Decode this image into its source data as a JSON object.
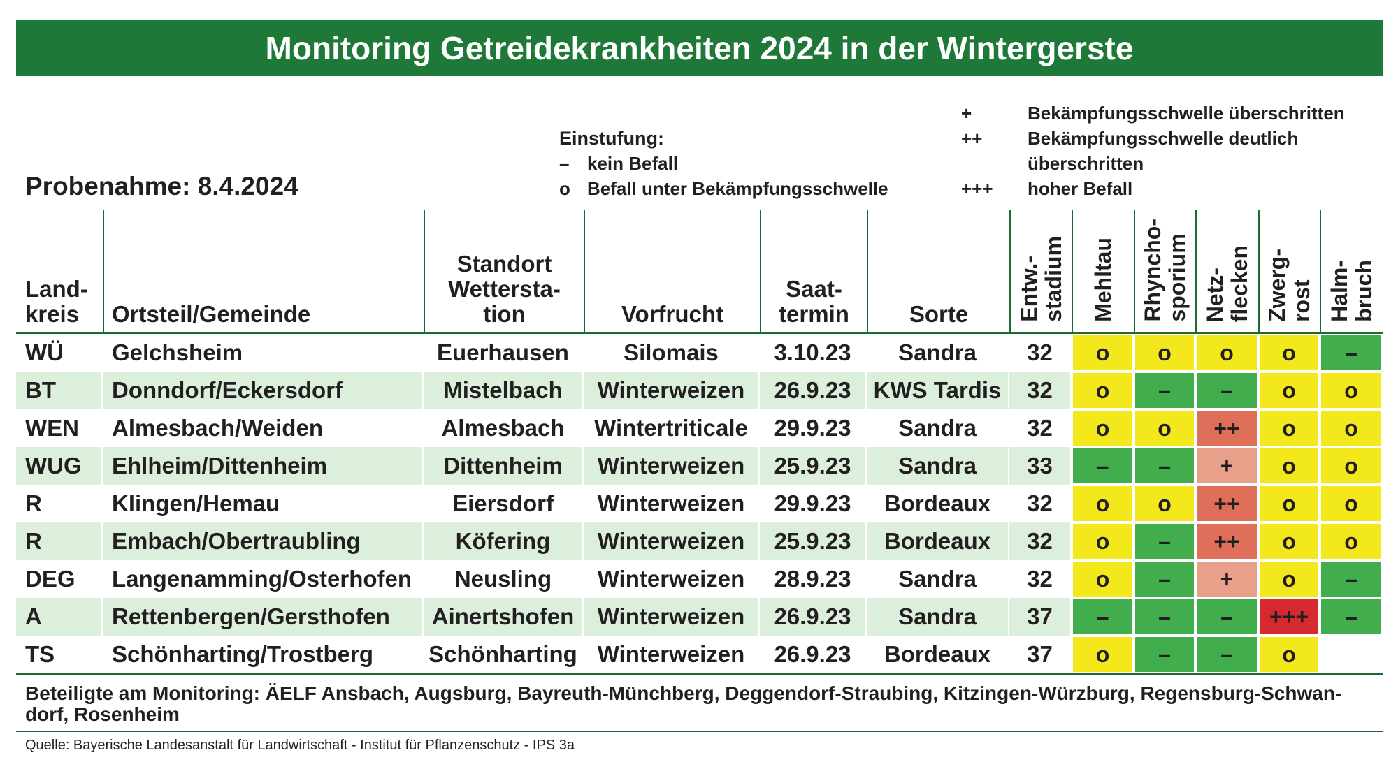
{
  "title": "Monitoring Getreidekrankheiten 2024 in der Wintergerste",
  "sampling_date": "Probenahme: 8.4.2024",
  "legend": {
    "heading": "Einstufung:",
    "left": [
      {
        "symbol": "–",
        "label": "kein Befall"
      },
      {
        "symbol": "o",
        "label": "Befall unter Bekämpfungsschwelle"
      }
    ],
    "right": [
      {
        "symbol": "+",
        "lines": [
          "Bekämpfungsschwelle überschritten"
        ]
      },
      {
        "symbol": "++",
        "lines": [
          "Bekämpfungsschwelle deutlich",
          "überschritten"
        ]
      },
      {
        "symbol": "+++",
        "lines": [
          "hoher Befall"
        ]
      }
    ]
  },
  "table": {
    "columns": [
      {
        "lines": [
          "Land-",
          "kreis"
        ]
      },
      {
        "lines": [
          "Ortsteil/Gemeinde"
        ]
      },
      {
        "lines": [
          "Standort",
          "Wettersta-",
          "tion"
        ]
      },
      {
        "lines": [
          "Vorfrucht"
        ]
      },
      {
        "lines": [
          "Saat-",
          "termin"
        ]
      },
      {
        "lines": [
          "Sorte"
        ]
      },
      {
        "lines": [
          "Entw.-",
          "stadium"
        ]
      },
      {
        "lines": [
          "Mehltau"
        ]
      },
      {
        "lines": [
          "Rhyncho-",
          "sporium"
        ]
      },
      {
        "lines": [
          "Netz-",
          "flecken"
        ]
      },
      {
        "lines": [
          "Zwerg-",
          "rost"
        ]
      },
      {
        "lines": [
          "Halm-",
          "bruch"
        ]
      }
    ],
    "rows": [
      {
        "landkreis": "WÜ",
        "ortsteil": "Gelchsheim",
        "standort": "Euerhausen",
        "vorfrucht": "Silomais",
        "saattermin": "3.10.23",
        "sorte": "Sandra",
        "stadium": "32",
        "ratings": [
          "o",
          "o",
          "o",
          "o",
          "–"
        ]
      },
      {
        "landkreis": "BT",
        "ortsteil": "Donndorf/Eckersdorf",
        "standort": "Mistelbach",
        "vorfrucht": "Winterweizen",
        "saattermin": "26.9.23",
        "sorte": "KWS Tardis",
        "stadium": "32",
        "ratings": [
          "o",
          "–",
          "–",
          "o",
          "o"
        ]
      },
      {
        "landkreis": "WEN",
        "ortsteil": "Almesbach/Weiden",
        "standort": "Almesbach",
        "vorfrucht": "Wintertriticale",
        "saattermin": "29.9.23",
        "sorte": "Sandra",
        "stadium": "32",
        "ratings": [
          "o",
          "o",
          "++",
          "o",
          "o"
        ]
      },
      {
        "landkreis": "WUG",
        "ortsteil": "Ehlheim/Dittenheim",
        "standort": "Dittenheim",
        "vorfrucht": "Winterweizen",
        "saattermin": "25.9.23",
        "sorte": "Sandra",
        "stadium": "33",
        "ratings": [
          "–",
          "–",
          "+",
          "o",
          "o"
        ]
      },
      {
        "landkreis": "R",
        "ortsteil": "Klingen/Hemau",
        "standort": "Eiersdorf",
        "vorfrucht": "Winterweizen",
        "saattermin": "29.9.23",
        "sorte": "Bordeaux",
        "stadium": "32",
        "ratings": [
          "o",
          "o",
          "++",
          "o",
          "o"
        ]
      },
      {
        "landkreis": "R",
        "ortsteil": "Embach/Obertraubling",
        "standort": "Köfering",
        "vorfrucht": "Winterweizen",
        "saattermin": "25.9.23",
        "sorte": "Bordeaux",
        "stadium": "32",
        "ratings": [
          "o",
          "–",
          "++",
          "o",
          "o"
        ]
      },
      {
        "landkreis": "DEG",
        "ortsteil": "Langenamming/Osterhofen",
        "standort": "Neusling",
        "vorfrucht": "Winterweizen",
        "saattermin": "28.9.23",
        "sorte": "Sandra",
        "stadium": "32",
        "ratings": [
          "o",
          "–",
          "+",
          "o",
          "–"
        ]
      },
      {
        "landkreis": "A",
        "ortsteil": "Rettenbergen/Gersthofen",
        "standort": "Ainertshofen",
        "vorfrucht": "Winterweizen",
        "saattermin": "26.9.23",
        "sorte": "Sandra",
        "stadium": "37",
        "ratings": [
          "–",
          "–",
          "–",
          "+++",
          "–"
        ]
      },
      {
        "landkreis": "TS",
        "ortsteil": "Schönharting/Trostberg",
        "standort": "Schönharting",
        "vorfrucht": "Winterweizen",
        "saattermin": "26.9.23",
        "sorte": "Bordeaux",
        "stadium": "37",
        "ratings": [
          "o",
          "–",
          "–",
          "o",
          ""
        ]
      }
    ]
  },
  "rating_colors": {
    "o": "#f3e81b",
    "–": "#41ad4c",
    "+": "#e9a08a",
    "++": "#de705a",
    "+++": "#d62a2e"
  },
  "theme": {
    "title_bg": "#1e7838",
    "rule": "#1b6b33",
    "row_alt_bg": "#dcefdc",
    "text": "#231f20"
  },
  "footer": {
    "participants": [
      "Beteiligte am Monitoring: ÄELF Ansbach, Augsburg, Bayreuth-Münchberg, Deggendorf-Straubing, Kitzingen-Würzburg, Regensburg-Schwan-",
      "dorf, Rosenheim"
    ],
    "source": "Quelle: Bayerische Landesanstalt für Landwirtschaft - Institut für Pflanzenschutz - IPS 3a"
  }
}
